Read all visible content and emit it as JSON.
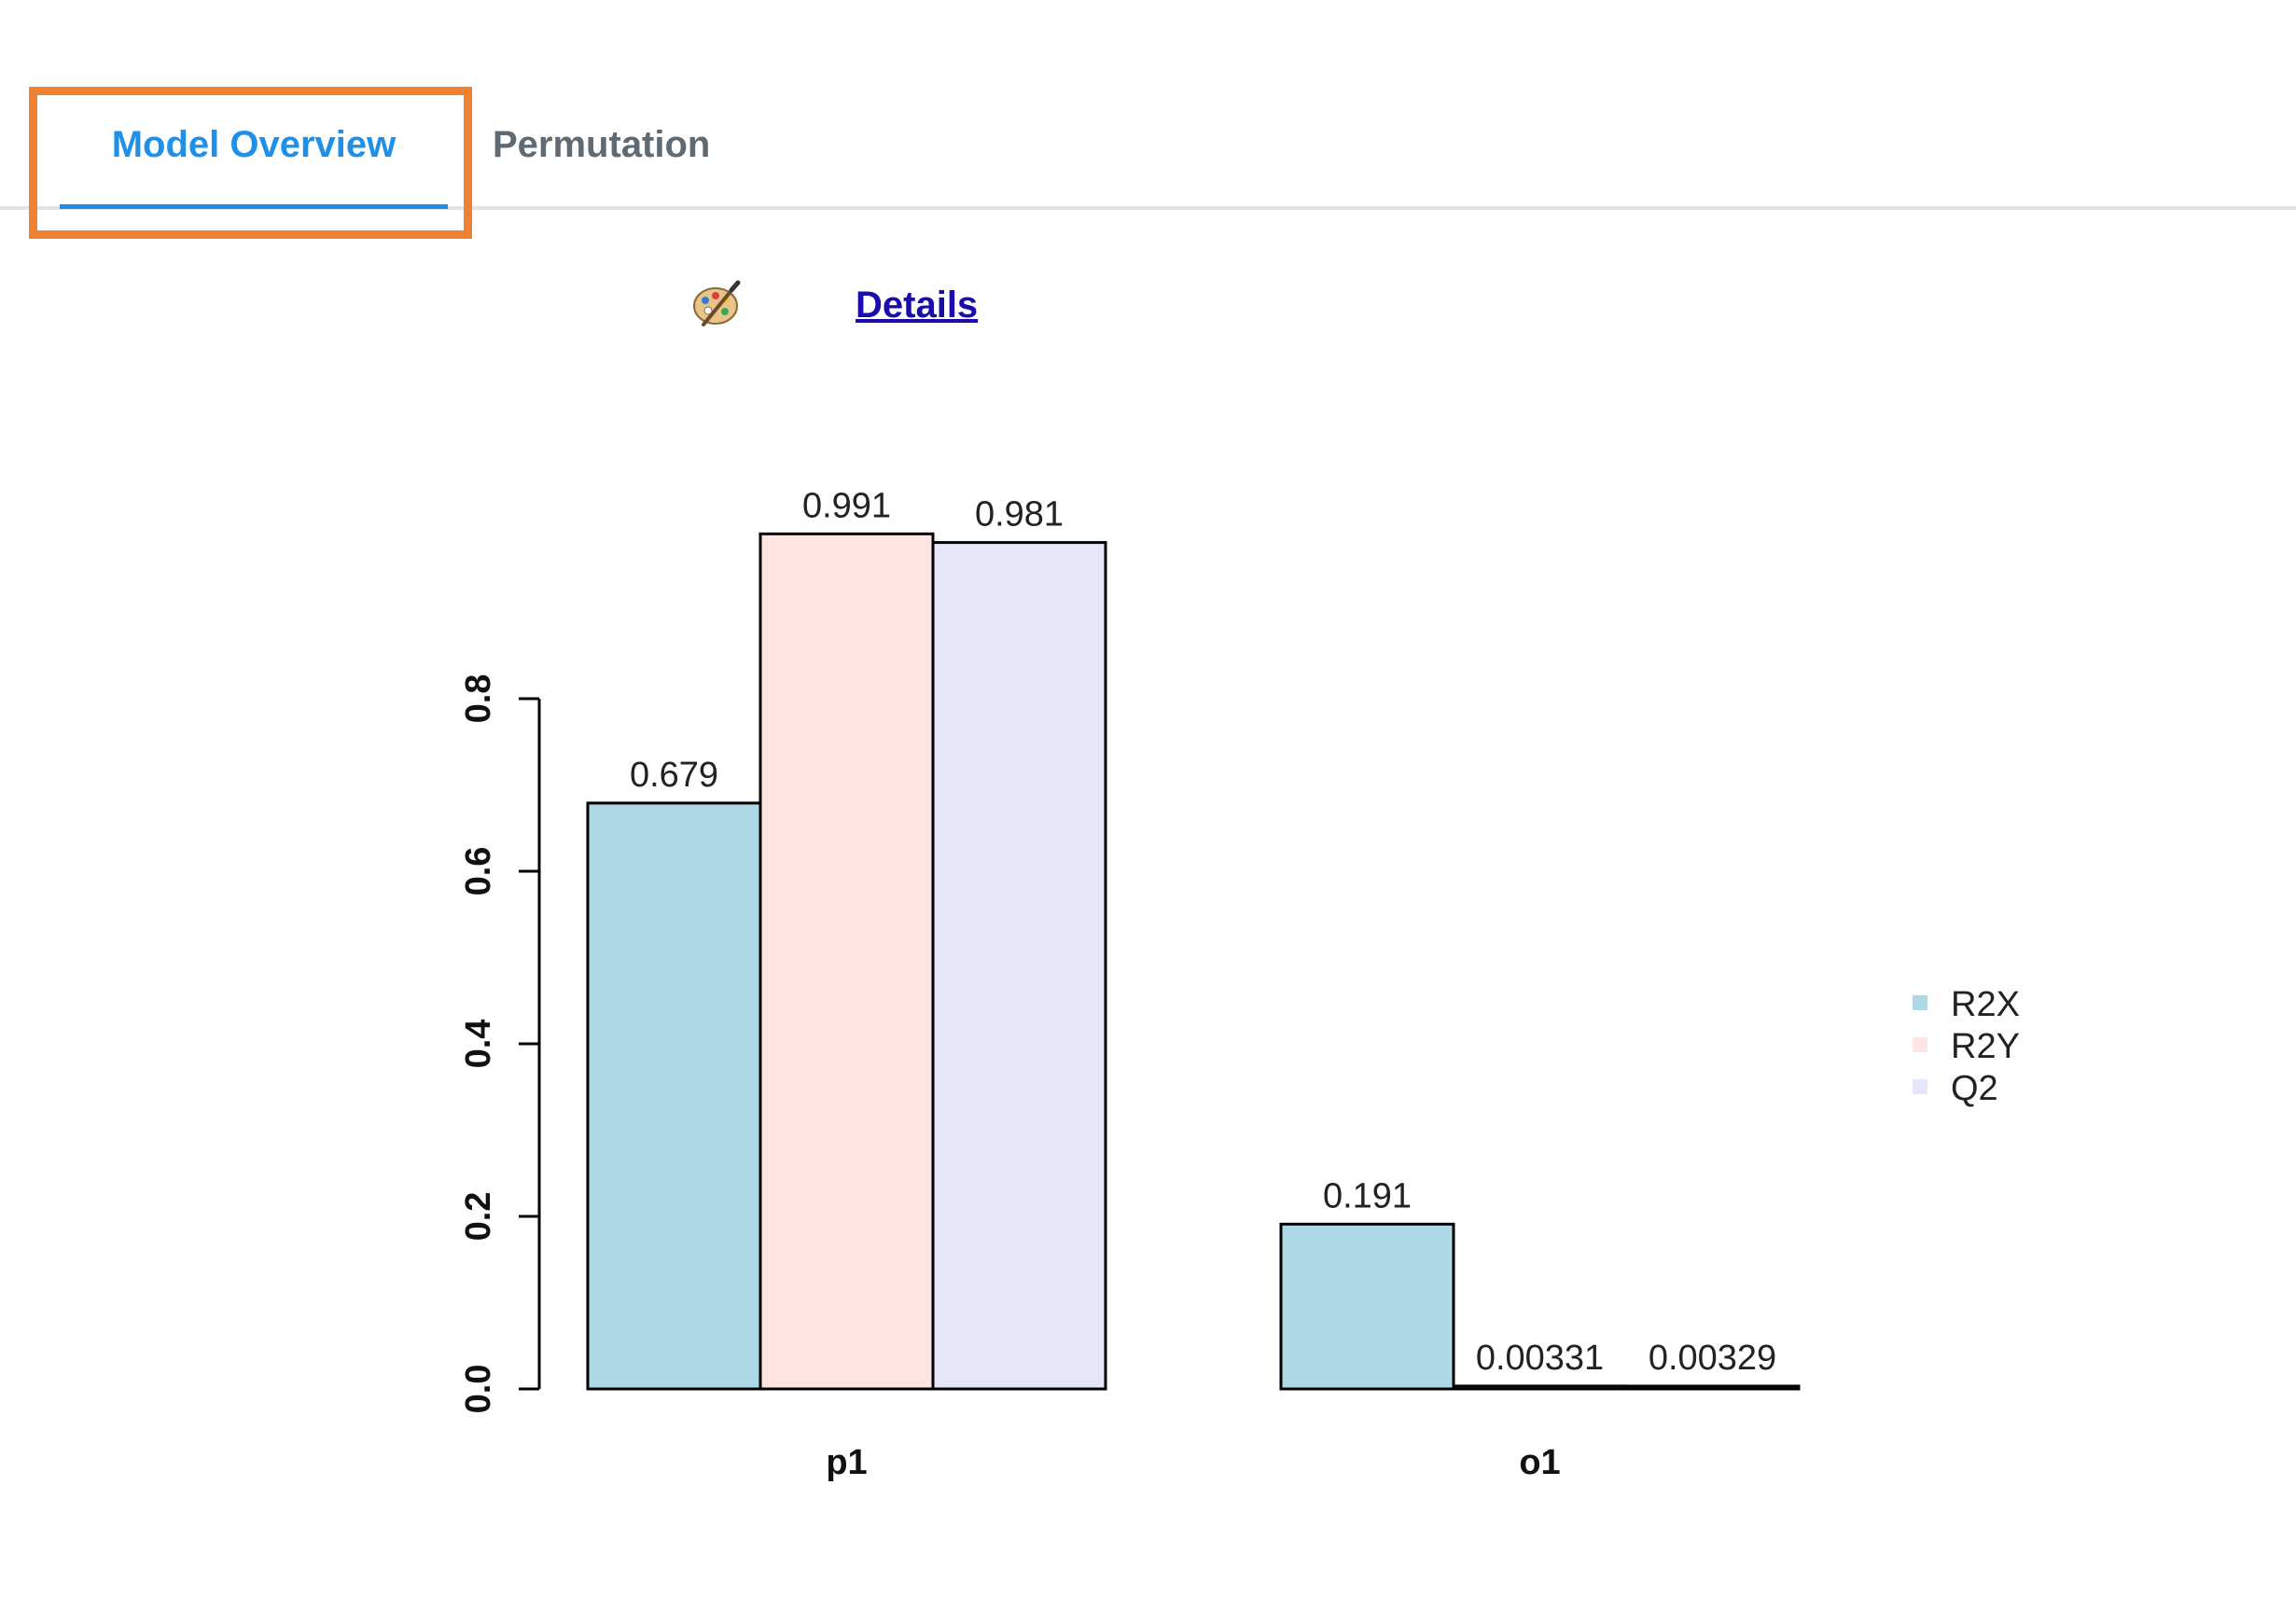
{
  "tabs": [
    {
      "label": "Model Overview",
      "active": true
    },
    {
      "label": "Permutation",
      "active": false
    }
  ],
  "toolbar": {
    "palette_icon": "palette-icon",
    "details_label": "Details"
  },
  "colors": {
    "tab_active": "#1e90ea",
    "tab_inactive": "#606a73",
    "highlight": "#ee8233",
    "link": "#1a0dab"
  },
  "chart_data": {
    "type": "bar",
    "categories": [
      "p1",
      "o1"
    ],
    "series": [
      {
        "name": "R2X",
        "values": [
          0.679,
          0.191
        ],
        "labels": [
          "0.679",
          "0.191"
        ],
        "color": "#add8e6"
      },
      {
        "name": "R2Y",
        "values": [
          0.991,
          0.00331
        ],
        "labels": [
          "0.991",
          "0.00331"
        ],
        "color": "#ffe4e1"
      },
      {
        "name": "Q2",
        "values": [
          0.981,
          0.00329
        ],
        "labels": [
          "0.981",
          "0.00329"
        ],
        "color": "#e6e6fa"
      }
    ],
    "yticks": [
      "0.0",
      "0.2",
      "0.4",
      "0.6",
      "0.8"
    ],
    "ylim": [
      0,
      1
    ],
    "grid": false,
    "legend": "right"
  }
}
